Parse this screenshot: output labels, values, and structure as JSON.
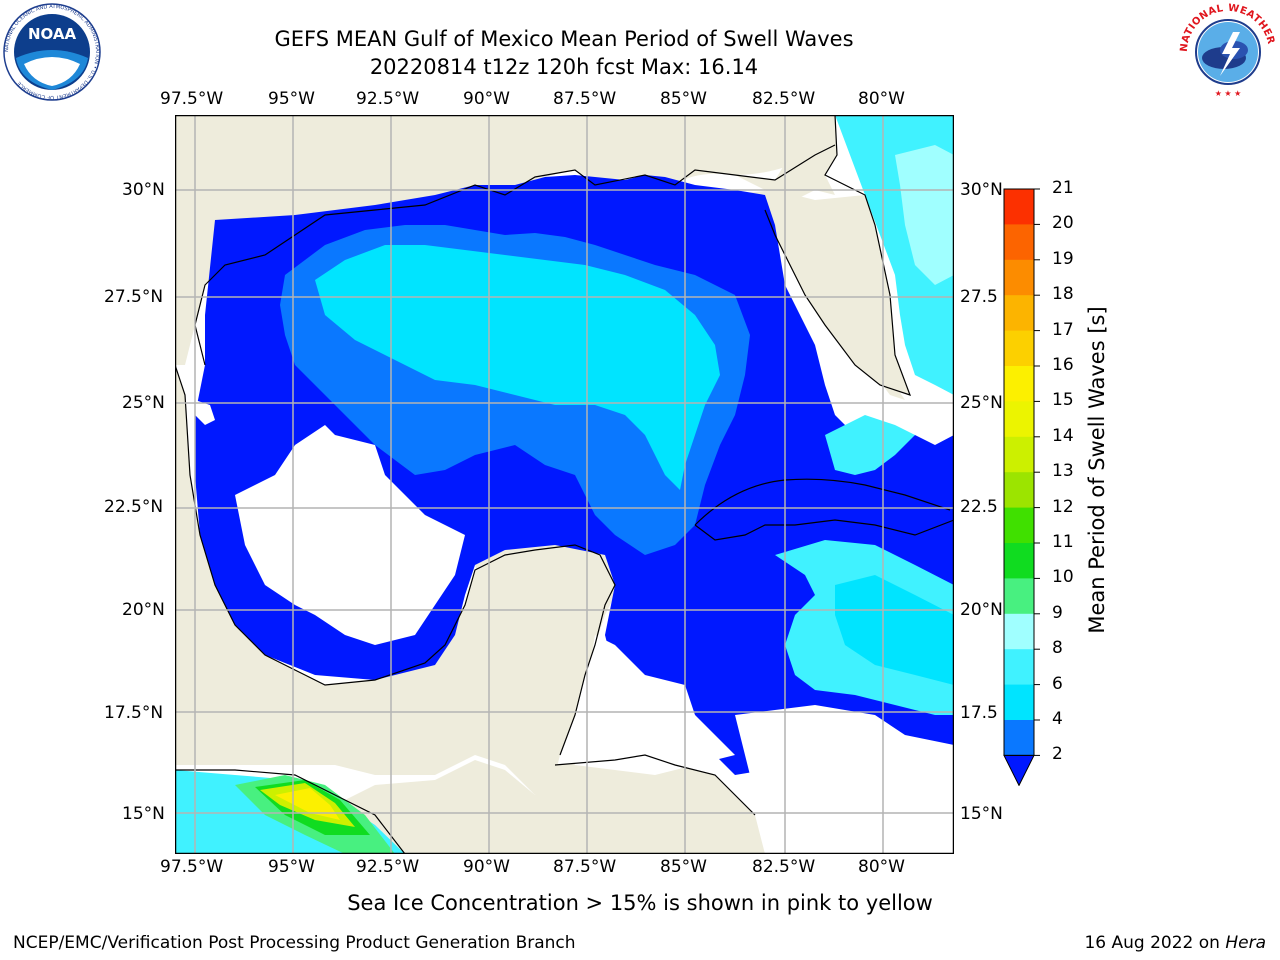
{
  "title_line1": "GEFS MEAN Gulf of Mexico Mean Period of Swell Waves",
  "title_line2": "20220814 t12z 120h fcst   Max: 16.14",
  "map": {
    "lon_labels": [
      "97.5°W",
      "95°W",
      "92.5°W",
      "90°W",
      "87.5°W",
      "85°W",
      "82.5°W",
      "80°W"
    ],
    "lat_labels_left": [
      "30°N",
      "27.5°N",
      "25°N",
      "22.5°N",
      "20°N",
      "17.5°N",
      "15°N"
    ],
    "lat_labels_right": [
      "30°N",
      "27.5",
      "25°N",
      "22.5",
      "20°N",
      "17.5",
      "15°N"
    ],
    "extent": {
      "lon_min": -98,
      "lon_max": -78.3,
      "lat_min": 14,
      "lat_max": 31.6
    },
    "land_color": "#eeecdc",
    "grid_color": "#b4b4b4"
  },
  "colorbar": {
    "label": "Mean Period of Swell Waves [s]",
    "ticks": [
      "2",
      "4",
      "6",
      "8",
      "9",
      "10",
      "11",
      "12",
      "13",
      "14",
      "15",
      "16",
      "17",
      "18",
      "19",
      "20",
      "21"
    ],
    "colors": [
      "#0a78ff",
      "#00e4ff",
      "#40f2ff",
      "#a0ffff",
      "#48f080",
      "#10dc20",
      "#40e000",
      "#9ce400",
      "#ccf000",
      "#ecf400",
      "#fcf000",
      "#fcd000",
      "#fcb400",
      "#fc8c00",
      "#fc6400",
      "#fc3000"
    ],
    "extend_color": "#0018ff"
  },
  "footnote": "Sea Ice Concentration > 15% is shown in pink to yellow",
  "credit": "NCEP/EMC/Verification Post Processing Product Generation Branch",
  "date_text": "16 Aug 2022 on ",
  "date_host": "Hera",
  "logos": {
    "noaa_text": "NOAA",
    "noaa_ring_text": "NATIONAL OCEANIC AND ATMOSPHERIC ADMINISTRATION • U.S. DEPARTMENT OF COMMERCE",
    "nws_ring_text": "NATIONAL WEATHER SERVICE"
  }
}
